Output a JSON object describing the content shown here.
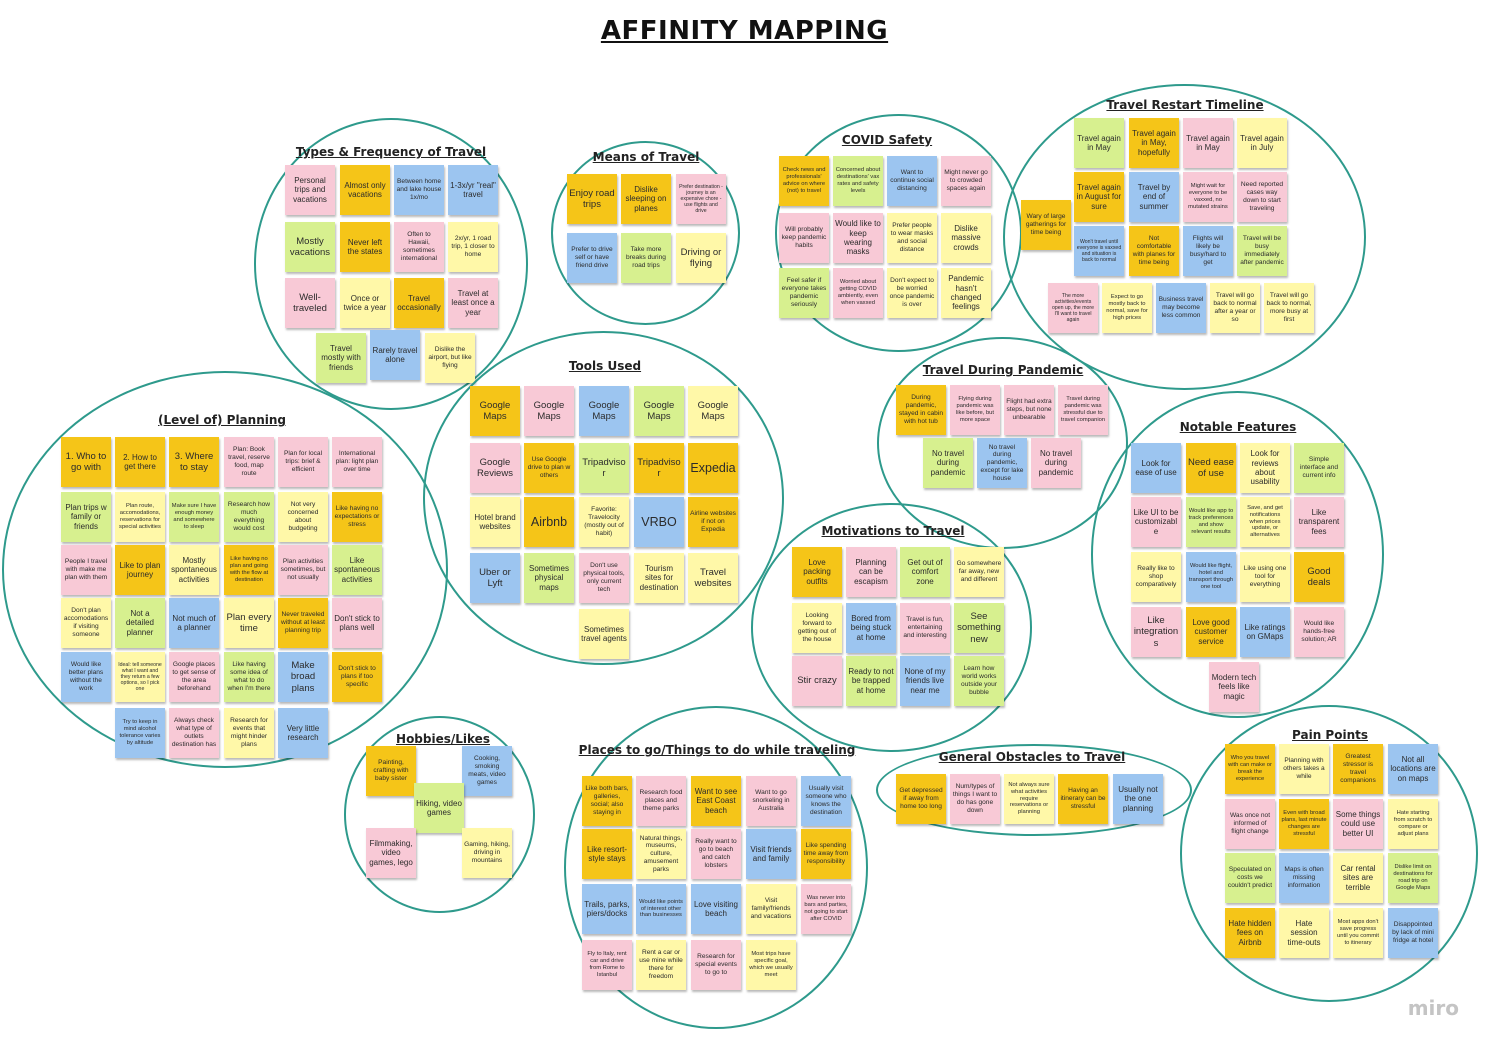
{
  "title": "AFFINITY MAPPING",
  "watermark": "miro",
  "colors": {
    "yellow": "#f5c518",
    "lightyellow": "#fff8a8",
    "pink": "#f8c9d6",
    "blue": "#9cc5f0",
    "green": "#d7f08f",
    "ring": "#2e9a8c"
  },
  "clusters": [
    {
      "id": "types",
      "title": "Types & Frequency of Travel",
      "notes": [
        {
          "t": "Personal trips and vacations",
          "c": "pink"
        },
        {
          "t": "Almost only vacations",
          "c": "yellow"
        },
        {
          "t": "Between home and lake house 1x/mo",
          "c": "blue"
        },
        {
          "t": "1-3x/yr \"real\" travel",
          "c": "blue"
        },
        {
          "t": "Mostly vacations",
          "c": "green"
        },
        {
          "t": "Never left the states",
          "c": "yellow"
        },
        {
          "t": "Often to Hawaii, sometimes international",
          "c": "pink"
        },
        {
          "t": "2x/yr, 1 road trip, 1 closer to home",
          "c": "lightyellow"
        },
        {
          "t": "Well-traveled",
          "c": "pink"
        },
        {
          "t": "Once or twice a year",
          "c": "lightyellow"
        },
        {
          "t": "Travel occasionally",
          "c": "yellow"
        },
        {
          "t": "Travel at least once a year",
          "c": "pink"
        },
        {
          "t": "Travel mostly with friends",
          "c": "green"
        },
        {
          "t": "Rarely travel alone",
          "c": "blue"
        },
        {
          "t": "Dislike the airport, but like flying",
          "c": "lightyellow"
        }
      ]
    },
    {
      "id": "means",
      "title": "Means of Travel",
      "notes": [
        {
          "t": "Enjoy road trips",
          "c": "yellow"
        },
        {
          "t": "Dislike sleeping on planes",
          "c": "yellow"
        },
        {
          "t": "Prefer destination - journey is an expensive chore - use flights and drive",
          "c": "pink"
        },
        {
          "t": "Prefer to drive self or have friend drive",
          "c": "blue"
        },
        {
          "t": "Take more breaks during road trips",
          "c": "green"
        },
        {
          "t": "Driving or flying",
          "c": "lightyellow"
        }
      ]
    },
    {
      "id": "covid",
      "title": "COVID Safety",
      "notes": [
        {
          "t": "Check news and professionals' advice on where (not) to travel",
          "c": "yellow"
        },
        {
          "t": "Concerned about destinations' vax rates and safety levels",
          "c": "green"
        },
        {
          "t": "Want to continue social distancing",
          "c": "blue"
        },
        {
          "t": "Might never go to crowded spaces again",
          "c": "pink"
        },
        {
          "t": "Will probably keep pandemic habits",
          "c": "pink"
        },
        {
          "t": "Would like to keep wearing masks",
          "c": "pink"
        },
        {
          "t": "Prefer people to wear masks and social distance",
          "c": "lightyellow"
        },
        {
          "t": "Dislike massive crowds",
          "c": "lightyellow"
        },
        {
          "t": "Feel safer if everyone takes pandemic seriously",
          "c": "green"
        },
        {
          "t": "Worried about getting COVID ambiently, even when vaxxed",
          "c": "pink"
        },
        {
          "t": "Don't expect to be worried once pandemic is over",
          "c": "lightyellow"
        },
        {
          "t": "Pandemic hasn't changed feelings",
          "c": "lightyellow"
        }
      ]
    },
    {
      "id": "restart",
      "title": "Travel Restart Timeline",
      "notes": [
        {
          "t": "Travel again in May",
          "c": "green"
        },
        {
          "t": "Travel again in May, hopefully",
          "c": "yellow"
        },
        {
          "t": "Travel again in May",
          "c": "pink"
        },
        {
          "t": "Travel again in July",
          "c": "lightyellow"
        },
        {
          "t": "Wary of large gatherings for time being",
          "c": "yellow"
        },
        {
          "t": "Travel again in August for sure",
          "c": "yellow"
        },
        {
          "t": "Travel by end of summer",
          "c": "blue"
        },
        {
          "t": "Might wait for everyone to be vaxxed, no mutated strains",
          "c": "pink"
        },
        {
          "t": "Need reported cases way down to start traveling",
          "c": "pink"
        },
        {
          "t": "Won't travel until everyone is vaxxed and situation is back to normal",
          "c": "blue"
        },
        {
          "t": "Not comfortable with planes for time being",
          "c": "yellow"
        },
        {
          "t": "Flights will likely be busy/hard to get",
          "c": "blue"
        },
        {
          "t": "Travel will be busy immediately after pandemic",
          "c": "green"
        },
        {
          "t": "The more activities/events open up, the more I'll want to travel again",
          "c": "pink"
        },
        {
          "t": "Expect to go mostly back to normal, save for high prices",
          "c": "lightyellow"
        },
        {
          "t": "Business travel may become less common",
          "c": "blue"
        },
        {
          "t": "Travel will go back to normal after a year or so",
          "c": "lightyellow"
        },
        {
          "t": "Travel will go back to normal, more busy at first",
          "c": "lightyellow"
        }
      ]
    },
    {
      "id": "tools",
      "title": "Tools Used",
      "notes": [
        {
          "t": "Google Maps",
          "c": "yellow"
        },
        {
          "t": "Google Maps",
          "c": "pink"
        },
        {
          "t": "Google Maps",
          "c": "blue"
        },
        {
          "t": "Google Maps",
          "c": "green"
        },
        {
          "t": "Google Maps",
          "c": "lightyellow"
        },
        {
          "t": "Google Reviews",
          "c": "pink"
        },
        {
          "t": "Use Google drive to plan w others",
          "c": "yellow"
        },
        {
          "t": "Tripadvisor",
          "c": "green"
        },
        {
          "t": "Tripadvisor",
          "c": "yellow"
        },
        {
          "t": "Expedia",
          "c": "yellow"
        },
        {
          "t": "Hotel brand websites",
          "c": "lightyellow"
        },
        {
          "t": "Airbnb",
          "c": "yellow"
        },
        {
          "t": "Favorite: Travelocity (mostly out of habit)",
          "c": "lightyellow"
        },
        {
          "t": "VRBO",
          "c": "blue"
        },
        {
          "t": "Airline websites if not on Expedia",
          "c": "yellow"
        },
        {
          "t": "Uber or Lyft",
          "c": "blue"
        },
        {
          "t": "Sometimes physical maps",
          "c": "green"
        },
        {
          "t": "Don't use physical tools, only current tech",
          "c": "pink"
        },
        {
          "t": "Tourism sites for destination",
          "c": "lightyellow"
        },
        {
          "t": "Travel websites",
          "c": "lightyellow"
        },
        {
          "t": "Sometimes travel agents",
          "c": "lightyellow"
        }
      ]
    },
    {
      "id": "planning",
      "title": "(Level of) Planning",
      "notes": [
        {
          "t": "1. Who to go with",
          "c": "yellow"
        },
        {
          "t": "2. How to get there",
          "c": "yellow"
        },
        {
          "t": "3. Where to stay",
          "c": "yellow"
        },
        {
          "t": "Plan: Book travel, reserve food, map route",
          "c": "pink"
        },
        {
          "t": "Plan for local trips: brief & efficient",
          "c": "pink"
        },
        {
          "t": "International plan: light plan over time",
          "c": "pink"
        },
        {
          "t": "Plan trips w family or friends",
          "c": "green"
        },
        {
          "t": "Plan route, accomodations, reservations for special activities",
          "c": "lightyellow"
        },
        {
          "t": "Make sure I have enough money and somewhere to sleep",
          "c": "green"
        },
        {
          "t": "Research how much everything would cost",
          "c": "green"
        },
        {
          "t": "Not very concerned about budgeting",
          "c": "lightyellow"
        },
        {
          "t": "Like having no expectations or stress",
          "c": "yellow"
        },
        {
          "t": "People I travel with make me plan with them",
          "c": "pink"
        },
        {
          "t": "Like to plan journey",
          "c": "yellow"
        },
        {
          "t": "Mostly spontaneous activities",
          "c": "lightyellow"
        },
        {
          "t": "Like having no plan and going with the flow at destination",
          "c": "yellow"
        },
        {
          "t": "Plan activities sometimes, but not usually",
          "c": "pink"
        },
        {
          "t": "Like spontaneous activities",
          "c": "green"
        },
        {
          "t": "Don't plan accomodations if visiting someone",
          "c": "lightyellow"
        },
        {
          "t": "Not a detailed planner",
          "c": "green"
        },
        {
          "t": "Not much of a planner",
          "c": "blue"
        },
        {
          "t": "Plan every time",
          "c": "lightyellow"
        },
        {
          "t": "Never traveled without at least planning trip",
          "c": "yellow"
        },
        {
          "t": "Don't stick to plans well",
          "c": "pink"
        },
        {
          "t": "Would like better plans without the work",
          "c": "blue"
        },
        {
          "t": "Ideal: tell someone what I want and they return a few options, so I pick one",
          "c": "lightyellow"
        },
        {
          "t": "Google places to get sense of the area beforehand",
          "c": "pink"
        },
        {
          "t": "Like having some idea of what to do when I'm there",
          "c": "green"
        },
        {
          "t": "Make broad plans",
          "c": "blue"
        },
        {
          "t": "Don't stick to plans if too specific",
          "c": "yellow"
        },
        {
          "t": "Try to keep in mind alcohol tolerance varies by altitude",
          "c": "blue"
        },
        {
          "t": "Always check what type of outlets destination has",
          "c": "pink"
        },
        {
          "t": "Research for events that might hinder plans",
          "c": "lightyellow"
        },
        {
          "t": "Very little research",
          "c": "blue"
        }
      ]
    },
    {
      "id": "pandemic",
      "title": "Travel During Pandemic",
      "notes": [
        {
          "t": "During pandemic, stayed in cabin with hot tub",
          "c": "yellow"
        },
        {
          "t": "Flying during pandemic was like before, but more space",
          "c": "pink"
        },
        {
          "t": "Flight had extra steps, but none unbearable",
          "c": "pink"
        },
        {
          "t": "Travel during pandemic was stressful due to travel companion",
          "c": "pink"
        },
        {
          "t": "No travel during pandemic",
          "c": "green"
        },
        {
          "t": "No travel during pandemic, except for lake house",
          "c": "blue"
        },
        {
          "t": "No travel during pandemic",
          "c": "pink"
        }
      ]
    },
    {
      "id": "features",
      "title": "Notable Features",
      "notes": [
        {
          "t": "Look for ease of use",
          "c": "blue"
        },
        {
          "t": "Need ease of use",
          "c": "yellow"
        },
        {
          "t": "Look for reviews about usability",
          "c": "lightyellow"
        },
        {
          "t": "Simple interface and current info",
          "c": "green"
        },
        {
          "t": "Like UI to be customizable",
          "c": "pink"
        },
        {
          "t": "Would like app to track preferences and show relevant results",
          "c": "green"
        },
        {
          "t": "Save, and get notifications when prices update, or alternatives",
          "c": "lightyellow"
        },
        {
          "t": "Like transparent fees",
          "c": "pink"
        },
        {
          "t": "Really like to shop comparatively",
          "c": "lightyellow"
        },
        {
          "t": "Would like flight, hotel and transport through one tool",
          "c": "blue"
        },
        {
          "t": "Like using one tool for everything",
          "c": "lightyellow"
        },
        {
          "t": "Good deals",
          "c": "yellow"
        },
        {
          "t": "Like integrations",
          "c": "pink"
        },
        {
          "t": "Love good customer service",
          "c": "yellow"
        },
        {
          "t": "Like ratings on GMaps",
          "c": "blue"
        },
        {
          "t": "Would like hands-free solution; AR",
          "c": "pink"
        },
        {
          "t": "Modern tech feels like magic",
          "c": "pink"
        }
      ]
    },
    {
      "id": "motivations",
      "title": "Motivations to Travel",
      "notes": [
        {
          "t": "Love packing outfits",
          "c": "yellow"
        },
        {
          "t": "Planning can be escapism",
          "c": "pink"
        },
        {
          "t": "Get out of comfort zone",
          "c": "green"
        },
        {
          "t": "Go somewhere far away, new and different",
          "c": "lightyellow"
        },
        {
          "t": "Looking forward to getting out of the house",
          "c": "lightyellow"
        },
        {
          "t": "Bored from being stuck at home",
          "c": "blue"
        },
        {
          "t": "Travel is fun, entertaining and interesting",
          "c": "pink"
        },
        {
          "t": "See something new",
          "c": "green"
        },
        {
          "t": "Stir crazy",
          "c": "pink"
        },
        {
          "t": "Ready to not be trapped at home",
          "c": "green"
        },
        {
          "t": "None of my friends live near me",
          "c": "blue"
        },
        {
          "t": "Learn how world works outside your bubble",
          "c": "green"
        }
      ]
    },
    {
      "id": "hobbies",
      "title": "Hobbies/Likes",
      "notes": [
        {
          "t": "Painting, crafting with baby sister",
          "c": "yellow"
        },
        {
          "t": "Cooking, smoking meats, video games",
          "c": "blue"
        },
        {
          "t": "Hiking, video games",
          "c": "green"
        },
        {
          "t": "Filmmaking, video games, lego",
          "c": "pink"
        },
        {
          "t": "Gaming, hiking, driving in mountains",
          "c": "lightyellow"
        }
      ]
    },
    {
      "id": "places",
      "title": "Places to go/Things to do while traveling",
      "notes": [
        {
          "t": "Like both bars, galleries, social; also staying in",
          "c": "yellow"
        },
        {
          "t": "Research food places and theme parks",
          "c": "pink"
        },
        {
          "t": "Want to see East Coast beach",
          "c": "yellow"
        },
        {
          "t": "Want to go snorkeling in Australia",
          "c": "pink"
        },
        {
          "t": "Usually visit someone who knows the destination",
          "c": "blue"
        },
        {
          "t": "Like resort-style stays",
          "c": "yellow"
        },
        {
          "t": "Natural things, museums, culture, amusement parks",
          "c": "lightyellow"
        },
        {
          "t": "Really want to go to beach and catch lobsters",
          "c": "pink"
        },
        {
          "t": "Visit friends and family",
          "c": "blue"
        },
        {
          "t": "Like spending time away from responsibility",
          "c": "yellow"
        },
        {
          "t": "Trails, parks, piers/docks",
          "c": "blue"
        },
        {
          "t": "Would like points of interest other than businesses",
          "c": "blue"
        },
        {
          "t": "Love visiting beach",
          "c": "blue"
        },
        {
          "t": "Visit family/friends and vacations",
          "c": "lightyellow"
        },
        {
          "t": "Was never into bars and parties, not going to start after COVID",
          "c": "pink"
        },
        {
          "t": "Fly to Italy, rent car and drive from Rome to Istanbul",
          "c": "pink"
        },
        {
          "t": "Rent a car or use mine while there for freedom",
          "c": "lightyellow"
        },
        {
          "t": "Research for special events to go to",
          "c": "pink"
        },
        {
          "t": "Most trips have specific goal, which we usually meet",
          "c": "lightyellow"
        }
      ]
    },
    {
      "id": "obstacles",
      "title": "General Obstacles to Travel",
      "notes": [
        {
          "t": "Get depressed if away from home too long",
          "c": "yellow"
        },
        {
          "t": "Num/types of things I want to do has gone down",
          "c": "pink"
        },
        {
          "t": "Not always sure what activities require reservations or planning",
          "c": "lightyellow"
        },
        {
          "t": "Having an itinerary can be stressful",
          "c": "yellow"
        },
        {
          "t": "Usually not the one planning",
          "c": "blue"
        }
      ]
    },
    {
      "id": "pain",
      "title": "Pain Points",
      "notes": [
        {
          "t": "Who you travel with can make or break the experience",
          "c": "yellow"
        },
        {
          "t": "Planning with others takes a while",
          "c": "lightyellow"
        },
        {
          "t": "Greatest stressor is travel companions",
          "c": "yellow"
        },
        {
          "t": "Not all locations are on maps",
          "c": "blue"
        },
        {
          "t": "Was once not informed of flight change",
          "c": "pink"
        },
        {
          "t": "Even with broad plans, last minute changes are stressful",
          "c": "yellow"
        },
        {
          "t": "Some things could use better UI",
          "c": "pink"
        },
        {
          "t": "Hate starting from scratch to compare or adjust plans",
          "c": "lightyellow"
        },
        {
          "t": "Speculated on costs we couldn't predict",
          "c": "green"
        },
        {
          "t": "Maps is often missing information",
          "c": "blue"
        },
        {
          "t": "Car rental sites are terrible",
          "c": "lightyellow"
        },
        {
          "t": "Dislike limit on destinations for road trip on Google Maps",
          "c": "green"
        },
        {
          "t": "Hate hidden fees on Airbnb",
          "c": "yellow"
        },
        {
          "t": "Hate session time-outs",
          "c": "lightyellow"
        },
        {
          "t": "Most apps don't save progress until you commit to itinerary",
          "c": "lightyellow"
        },
        {
          "t": "Disappointed by lack of mini fridge at hotel",
          "c": "blue"
        }
      ]
    }
  ]
}
